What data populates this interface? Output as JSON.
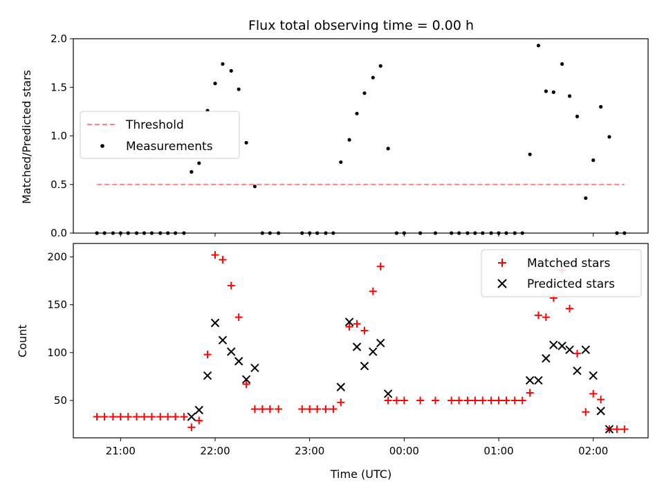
{
  "chart_data": [
    {
      "type": "scatter",
      "title": "Flux total observing time = 0.00 h",
      "xlabel": "",
      "ylabel": "Matched/Predicted stars",
      "ylim": [
        0,
        2.0
      ],
      "yticks": [
        "0.0",
        "0.5",
        "1.0",
        "1.5",
        "2.0"
      ],
      "threshold": {
        "name": "Threshold",
        "value": 0.5,
        "x_start": 20.75,
        "x_end": 26.33,
        "color": "#ff8080"
      },
      "legend": {
        "placement": "center-left",
        "entries": [
          "Threshold",
          "Measurements"
        ]
      },
      "series": [
        {
          "name": "Measurements",
          "marker": "dot",
          "color": "#000000",
          "x": [
            20.75,
            20.83,
            20.92,
            21.0,
            21.08,
            21.17,
            21.25,
            21.33,
            21.42,
            21.5,
            21.58,
            21.67,
            21.75,
            21.83,
            21.92,
            22.0,
            22.08,
            22.17,
            22.25,
            22.33,
            22.42,
            22.5,
            22.58,
            22.67,
            22.92,
            23.0,
            23.08,
            23.17,
            23.25,
            23.33,
            23.42,
            23.5,
            23.58,
            23.67,
            23.75,
            23.83,
            23.92,
            24.0,
            24.17,
            24.33,
            24.5,
            24.58,
            24.67,
            24.75,
            24.83,
            24.92,
            25.0,
            25.08,
            25.17,
            25.25,
            25.33,
            25.42,
            25.5,
            25.58,
            25.67,
            25.75,
            25.83,
            25.92,
            26.0,
            26.08,
            26.17,
            26.25,
            26.33
          ],
          "y": [
            0,
            0,
            0,
            0,
            0,
            0,
            0,
            0,
            0,
            0,
            0,
            0,
            0.63,
            0.72,
            1.26,
            1.54,
            1.74,
            1.67,
            1.48,
            0.93,
            0.48,
            0,
            0,
            0,
            0,
            0,
            0,
            0,
            0,
            0.73,
            0.96,
            1.23,
            1.44,
            1.6,
            1.72,
            0.87,
            0,
            0,
            0,
            0,
            0,
            0,
            0,
            0,
            0,
            0,
            0,
            0,
            0,
            0,
            0.81,
            1.93,
            1.46,
            1.45,
            1.74,
            1.41,
            1.2,
            0.36,
            0.75,
            1.3,
            0.99,
            0,
            0
          ]
        }
      ]
    },
    {
      "type": "scatter",
      "title": "",
      "xlabel": "Time (UTC)",
      "ylabel": "Count",
      "xlim": [
        20.5,
        26.58
      ],
      "ylim": [
        11,
        214
      ],
      "xticks": [
        {
          "value": 21.0,
          "label": "21:00"
        },
        {
          "value": 22.0,
          "label": "22:00"
        },
        {
          "value": 23.0,
          "label": "23:00"
        },
        {
          "value": 24.0,
          "label": "00:00"
        },
        {
          "value": 25.0,
          "label": "01:00"
        },
        {
          "value": 26.0,
          "label": "02:00"
        }
      ],
      "yticks": [
        50,
        100,
        150,
        200
      ],
      "legend": {
        "placement": "top-right",
        "entries": [
          "Matched stars",
          "Predicted stars"
        ]
      },
      "series": [
        {
          "name": "Matched stars",
          "marker": "plus",
          "color": "#ff0000",
          "x": [
            20.75,
            20.83,
            20.92,
            21.0,
            21.08,
            21.17,
            21.25,
            21.33,
            21.42,
            21.5,
            21.58,
            21.67,
            21.75,
            21.83,
            21.92,
            22.0,
            22.08,
            22.17,
            22.25,
            22.33,
            22.42,
            22.5,
            22.58,
            22.67,
            22.92,
            23.0,
            23.08,
            23.17,
            23.25,
            23.33,
            23.42,
            23.5,
            23.58,
            23.67,
            23.75,
            23.83,
            23.92,
            24.0,
            24.17,
            24.33,
            24.5,
            24.58,
            24.67,
            24.75,
            24.83,
            24.92,
            25.0,
            25.08,
            25.17,
            25.25,
            25.33,
            25.42,
            25.5,
            25.58,
            25.67,
            25.75,
            25.83,
            25.92,
            26.0,
            26.08,
            26.17,
            26.25,
            26.33
          ],
          "y": [
            33,
            33,
            33,
            33,
            33,
            33,
            33,
            33,
            33,
            33,
            33,
            33,
            22,
            29,
            98,
            202,
            197,
            170,
            137,
            67,
            41,
            41,
            41,
            41,
            41,
            41,
            41,
            41,
            41,
            48,
            127,
            130,
            123,
            164,
            190,
            50,
            50,
            50,
            50,
            50,
            50,
            50,
            50,
            50,
            50,
            50,
            50,
            50,
            50,
            50,
            58,
            139,
            137,
            157,
            186,
            146,
            99,
            38,
            57,
            51,
            20,
            20,
            20
          ]
        },
        {
          "name": "Predicted stars",
          "marker": "x",
          "color": "#000000",
          "x": [
            21.75,
            21.83,
            21.92,
            22.0,
            22.08,
            22.17,
            22.25,
            22.33,
            22.42,
            23.33,
            23.42,
            23.5,
            23.58,
            23.67,
            23.75,
            23.83,
            25.33,
            25.42,
            25.5,
            25.58,
            25.67,
            25.75,
            25.83,
            25.92,
            26.0,
            26.08,
            26.17
          ],
          "y": [
            33,
            40,
            76,
            131,
            113,
            101,
            91,
            72,
            84,
            64,
            132,
            106,
            86,
            101,
            110,
            57,
            71,
            71,
            94,
            108,
            107,
            103,
            81,
            103,
            76,
            39,
            20
          ]
        }
      ]
    }
  ]
}
